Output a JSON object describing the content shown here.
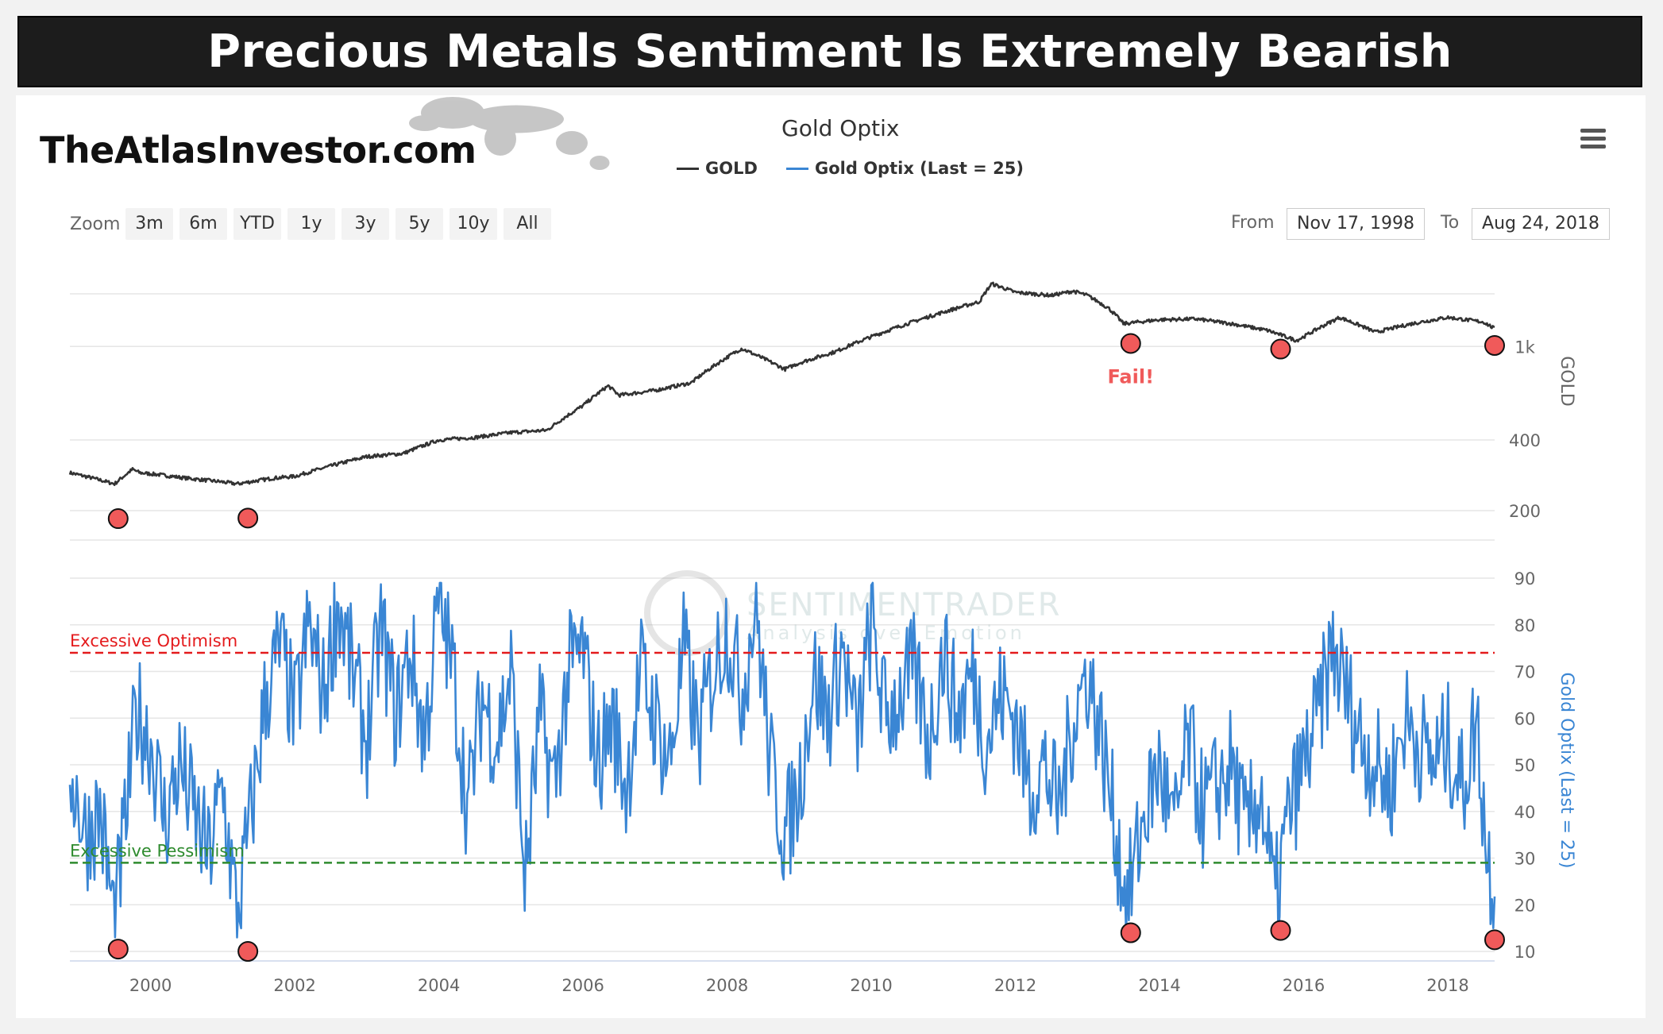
{
  "banner": {
    "title": "Precious Metals Sentiment Is Extremely Bearish"
  },
  "branding": {
    "site_name": "TheAtlasInvestor.com",
    "map_icon": "world-map-icon",
    "watermark_name": "SENTIMENTRADER",
    "watermark_tagline": "Analysis over Emotion"
  },
  "chart_header": {
    "title": "Gold Optix"
  },
  "toolbar": {
    "zoom_label": "Zoom",
    "zoom_options": [
      "3m",
      "6m",
      "YTD",
      "1y",
      "3y",
      "5y",
      "10y",
      "All"
    ],
    "from_label": "From",
    "from_value": "Nov 17, 1998",
    "to_label": "To",
    "to_value": "Aug 24, 2018",
    "menu_icon": "hamburger-menu-icon"
  },
  "colors": {
    "gold": "#333333",
    "optix": "#3a86d4",
    "optimism": "#e41a1c",
    "pessimism": "#2e8b2e",
    "marker": "#f05a5a"
  },
  "chart_data": [
    {
      "type": "line",
      "title": "Gold Optix",
      "xlabel": "",
      "ylabel": "GOLD",
      "yscale": "log",
      "ylim": [
        150,
        2200
      ],
      "yticks": [
        200,
        400,
        1000
      ],
      "ytick_labels": [
        "200",
        "400",
        "1k"
      ],
      "series": [
        {
          "name": "GOLD",
          "color": "#333333",
          "x": [
            1998.88,
            1999.2,
            1999.5,
            1999.75,
            1999.85,
            2000.1,
            2000.5,
            2001.0,
            2001.2,
            2001.7,
            2002.0,
            2002.5,
            2003.0,
            2003.5,
            2004.0,
            2004.5,
            2005.0,
            2005.5,
            2006.0,
            2006.35,
            2006.5,
            2007.0,
            2007.5,
            2008.0,
            2008.2,
            2008.8,
            2009.0,
            2009.5,
            2010.0,
            2010.5,
            2011.0,
            2011.5,
            2011.67,
            2012.0,
            2012.5,
            2012.8,
            2013.0,
            2013.3,
            2013.5,
            2014.0,
            2014.5,
            2015.0,
            2015.5,
            2015.9,
            2016.0,
            2016.5,
            2017.0,
            2017.5,
            2018.0,
            2018.5,
            2018.65
          ],
          "values": [
            290,
            275,
            260,
            300,
            290,
            285,
            275,
            265,
            260,
            275,
            280,
            310,
            340,
            350,
            400,
            410,
            430,
            440,
            560,
            680,
            620,
            650,
            700,
            900,
            980,
            800,
            850,
            950,
            1100,
            1250,
            1400,
            1550,
            1850,
            1700,
            1650,
            1720,
            1650,
            1450,
            1250,
            1300,
            1310,
            1250,
            1170,
            1060,
            1100,
            1330,
            1150,
            1250,
            1330,
            1270,
            1190
          ]
        }
      ],
      "markers": [
        {
          "x": 1999.55,
          "y": 185
        },
        {
          "x": 2001.35,
          "y": 186
        },
        {
          "x": 2013.6,
          "y": 1030
        },
        {
          "x": 2015.68,
          "y": 975
        },
        {
          "x": 2018.65,
          "y": 1010
        }
      ],
      "annotations": [
        {
          "text": "Fail!",
          "x": 2013.6,
          "color": "#f05a5a"
        }
      ]
    },
    {
      "type": "line",
      "ylabel": "Gold Optix (Last = 25)",
      "ylim": [
        10,
        90
      ],
      "yticks": [
        10,
        20,
        30,
        40,
        50,
        60,
        70,
        80,
        90
      ],
      "xlim": [
        1998.88,
        2018.65
      ],
      "xticks": [
        2000,
        2002,
        2004,
        2006,
        2008,
        2010,
        2012,
        2014,
        2016,
        2018
      ],
      "series": [
        {
          "name": "Gold Optix (Last = 25)",
          "color": "#3a86d4",
          "x": [
            1998.88,
            1999.1,
            1999.3,
            1999.5,
            1999.7,
            1999.8,
            2000.0,
            2000.2,
            2000.4,
            2000.6,
            2000.8,
            2001.0,
            2001.2,
            2001.4,
            2001.6,
            2001.8,
            2002.0,
            2002.2,
            2002.4,
            2002.6,
            2002.8,
            2003.0,
            2003.2,
            2003.4,
            2003.6,
            2003.8,
            2004.0,
            2004.2,
            2004.4,
            2004.6,
            2004.8,
            2005.0,
            2005.2,
            2005.4,
            2005.6,
            2005.8,
            2006.0,
            2006.2,
            2006.4,
            2006.6,
            2006.8,
            2007.0,
            2007.2,
            2007.4,
            2007.6,
            2007.8,
            2008.0,
            2008.2,
            2008.4,
            2008.6,
            2008.8,
            2009.0,
            2009.2,
            2009.4,
            2009.6,
            2009.8,
            2010.0,
            2010.2,
            2010.4,
            2010.6,
            2010.8,
            2011.0,
            2011.2,
            2011.4,
            2011.6,
            2011.8,
            2012.0,
            2012.2,
            2012.4,
            2012.6,
            2012.8,
            2013.0,
            2013.2,
            2013.4,
            2013.55,
            2013.8,
            2014.0,
            2014.2,
            2014.4,
            2014.6,
            2014.8,
            2015.0,
            2015.2,
            2015.4,
            2015.6,
            2015.8,
            2016.0,
            2016.2,
            2016.4,
            2016.6,
            2016.8,
            2017.0,
            2017.2,
            2017.4,
            2017.6,
            2017.8,
            2018.0,
            2018.2,
            2018.4,
            2018.55,
            2018.65
          ],
          "values": [
            50,
            35,
            40,
            16,
            45,
            62,
            55,
            38,
            50,
            40,
            30,
            45,
            17,
            40,
            65,
            75,
            60,
            80,
            65,
            85,
            70,
            55,
            80,
            60,
            75,
            55,
            85,
            70,
            40,
            65,
            55,
            70,
            25,
            60,
            45,
            70,
            75,
            50,
            60,
            45,
            70,
            60,
            50,
            75,
            55,
            70,
            80,
            65,
            85,
            50,
            35,
            45,
            70,
            60,
            75,
            55,
            80,
            60,
            65,
            70,
            55,
            75,
            60,
            70,
            55,
            65,
            60,
            45,
            50,
            40,
            60,
            70,
            55,
            35,
            20,
            40,
            50,
            35,
            55,
            40,
            45,
            50,
            35,
            45,
            20,
            40,
            50,
            60,
            75,
            65,
            55,
            50,
            45,
            60,
            55,
            50,
            55,
            45,
            60,
            30,
            25
          ]
        }
      ],
      "thresholds": [
        {
          "label": "Excessive Optimism",
          "value": 74,
          "color": "#e41a1c"
        },
        {
          "label": "Excessive Pessimism",
          "value": 29,
          "color": "#2e8b2e"
        }
      ],
      "markers": [
        {
          "x": 1999.55,
          "y": 10.5
        },
        {
          "x": 2001.35,
          "y": 10
        },
        {
          "x": 2013.6,
          "y": 14
        },
        {
          "x": 2015.68,
          "y": 14.5
        },
        {
          "x": 2018.65,
          "y": 12.5
        }
      ]
    }
  ]
}
